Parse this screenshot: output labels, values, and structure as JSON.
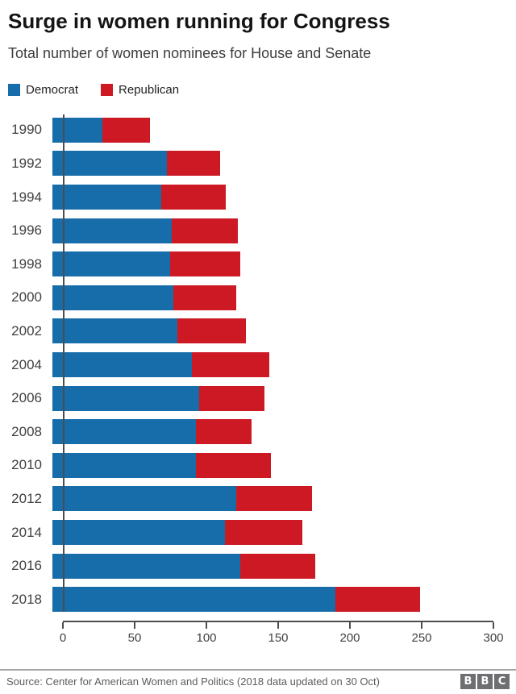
{
  "header": {
    "title": "Surge in women running for Congress",
    "subtitle": "Total number of women nominees for House and Senate"
  },
  "legend": [
    {
      "label": "Democrat",
      "color": "#176CAA"
    },
    {
      "label": "Republican",
      "color": "#CC1924"
    }
  ],
  "chart_data": {
    "type": "bar",
    "orientation": "horizontal",
    "stacked": true,
    "title": "Surge in women running for Congress",
    "subtitle": "Total number of women nominees for House and Senate",
    "categories": [
      "1990",
      "1992",
      "1994",
      "1996",
      "1998",
      "2000",
      "2002",
      "2004",
      "2006",
      "2008",
      "2010",
      "2012",
      "2014",
      "2016",
      "2018"
    ],
    "series": [
      {
        "name": "Democrat",
        "color": "#176CAA",
        "values": [
          35,
          80,
          76,
          83,
          82,
          84,
          87,
          97,
          102,
          100,
          100,
          128,
          120,
          131,
          197
        ]
      },
      {
        "name": "Republican",
        "color": "#CC1924",
        "values": [
          33,
          37,
          45,
          46,
          49,
          44,
          48,
          54,
          46,
          39,
          52,
          53,
          54,
          52,
          59
        ]
      }
    ],
    "totals": [
      68,
      117,
      121,
      129,
      131,
      128,
      135,
      151,
      148,
      139,
      152,
      181,
      174,
      183,
      256
    ],
    "xlim": [
      0,
      300
    ],
    "xticks": [
      0,
      50,
      100,
      150,
      200,
      250,
      300
    ],
    "grid": false,
    "legend_position": "top"
  },
  "footer": {
    "source": "Source: Center for American Women and Politics (2018 data updated on 30 Oct)",
    "logo_letters": [
      "B",
      "B",
      "C"
    ]
  }
}
